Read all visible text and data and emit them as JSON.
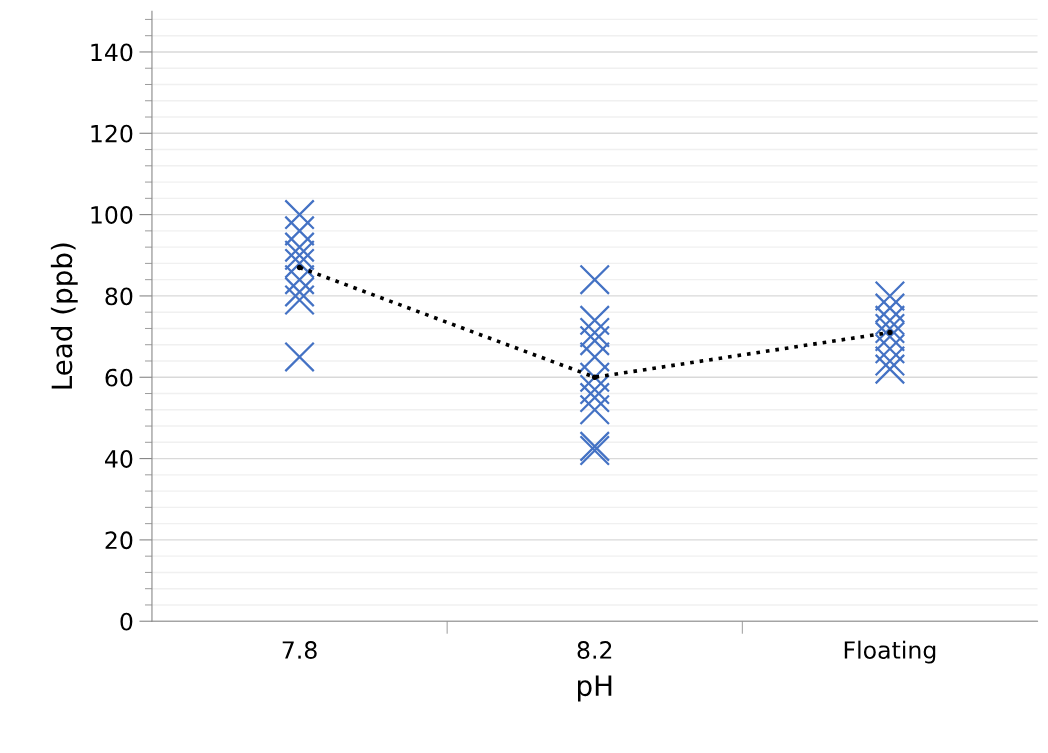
{
  "chart_data": {
    "type": "scatter",
    "xlabel": "pH",
    "ylabel": "Lead (ppb)",
    "categories": [
      "7.8",
      "8.2",
      "Floating"
    ],
    "ylim": [
      0,
      150
    ],
    "yticks": [
      0,
      20,
      40,
      60,
      80,
      100,
      120,
      140
    ],
    "grid": "y",
    "series": [
      {
        "color": "#4472c4",
        "marker": "cross",
        "x": [
          "7.8",
          "7.8",
          "7.8",
          "7.8",
          "7.8",
          "7.8",
          "7.8",
          "7.8",
          "7.8",
          "8.2",
          "8.2",
          "8.2",
          "8.2",
          "8.2",
          "8.2",
          "8.2",
          "8.2",
          "8.2",
          "8.2",
          "8.2",
          "Floating",
          "Floating",
          "Floating",
          "Floating",
          "Floating",
          "Floating",
          "Floating",
          "Floating"
        ],
        "values": [
          100,
          96,
          92,
          90,
          88,
          84,
          81,
          79,
          65,
          84,
          74,
          71,
          69,
          65,
          60,
          57,
          55,
          52,
          43,
          42,
          80,
          77,
          74,
          72,
          70,
          67,
          64,
          62
        ]
      },
      {
        "type": "line",
        "color": "#000000",
        "marker": "circle",
        "line_style": "dotted",
        "values": [
          87,
          60,
          71
        ]
      }
    ]
  }
}
